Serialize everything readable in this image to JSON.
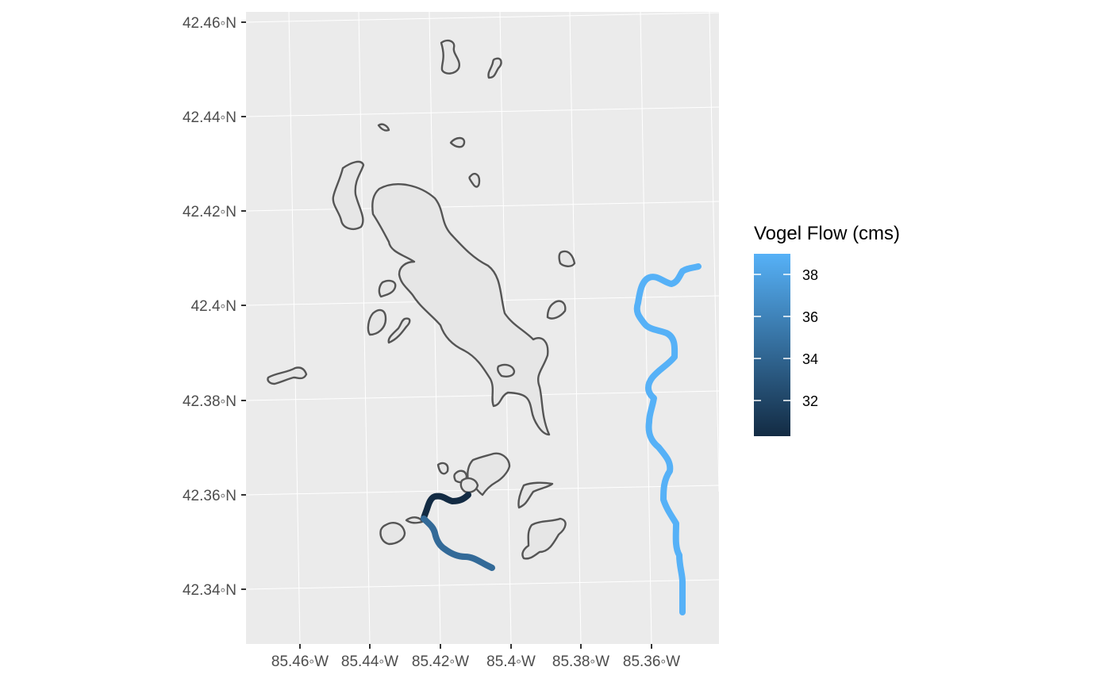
{
  "map": {
    "lat_labels": [
      "42.46◦N",
      "42.44◦N",
      "42.42◦N",
      "42.4◦N",
      "42.38◦N",
      "42.36◦N",
      "42.34◦N"
    ],
    "lon_labels": [
      "85.46◦W",
      "85.44◦W",
      "85.42◦W",
      "85.4◦W",
      "85.38◦W",
      "85.36◦W"
    ]
  },
  "legend": {
    "title": "Vogel Flow (cms)",
    "labels": [
      "38",
      "36",
      "34",
      "32"
    ],
    "color_low": "#132B43",
    "color_high": "#56B1F7"
  },
  "colors": {
    "panel": "#ebebeb",
    "lake_fill": "#e6e6e6",
    "lake_outline": "#555555",
    "river_main": "#56B1F7",
    "river_south_upper": "#132B43",
    "river_south_lower": "#336A98"
  }
}
